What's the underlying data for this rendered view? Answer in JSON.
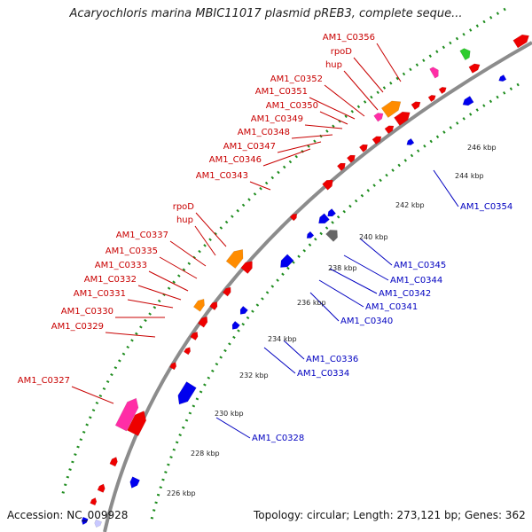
{
  "title": "Acaryochloris marina MBIC11017 plasmid pREB3, complete seque...",
  "footer": {
    "accession": "Accession: NC_009928",
    "summary": "Topology: circular; Length: 273,121 bp; Genes: 362"
  },
  "colors": {
    "backbone": "#8c8c8c",
    "forward_gene": "#ee0000",
    "reverse_gene": "#0000ee",
    "forward_label": "#c80000",
    "reverse_label": "#0000c0",
    "rna_like": "#ff8c00",
    "pink": "#ff2da6",
    "green": "#2ecc2e",
    "grey": "#666666",
    "dotted_ring": "#1e8c1e"
  },
  "forward_labels": [
    {
      "name": "AM1_C0356"
    },
    {
      "name": "rpoD"
    },
    {
      "name": "hup"
    },
    {
      "name": "AM1_C0352"
    },
    {
      "name": "AM1_C0351"
    },
    {
      "name": "AM1_C0350"
    },
    {
      "name": "AM1_C0349"
    },
    {
      "name": "AM1_C0348"
    },
    {
      "name": "AM1_C0347"
    },
    {
      "name": "AM1_C0346"
    },
    {
      "name": "AM1_C0343"
    },
    {
      "name": "rpoD"
    },
    {
      "name": "hup"
    },
    {
      "name": "AM1_C0337"
    },
    {
      "name": "AM1_C0335"
    },
    {
      "name": "AM1_C0333"
    },
    {
      "name": "AM1_C0332"
    },
    {
      "name": "AM1_C0331"
    },
    {
      "name": "AM1_C0330"
    },
    {
      "name": "AM1_C0329"
    },
    {
      "name": "AM1_C0327"
    }
  ],
  "reverse_labels": [
    {
      "name": "AM1_C0354"
    },
    {
      "name": "AM1_C0345"
    },
    {
      "name": "AM1_C0344"
    },
    {
      "name": "AM1_C0342"
    },
    {
      "name": "AM1_C0341"
    },
    {
      "name": "AM1_C0340"
    },
    {
      "name": "AM1_C0336"
    },
    {
      "name": "AM1_C0334"
    },
    {
      "name": "AM1_C0328"
    }
  ],
  "ticks": [
    "246 kbp",
    "244 kbp",
    "242 kbp",
    "240 kbp",
    "238 kbp",
    "236 kbp",
    "234 kbp",
    "232 kbp",
    "230 kbp",
    "228 kbp",
    "226 kbp"
  ]
}
